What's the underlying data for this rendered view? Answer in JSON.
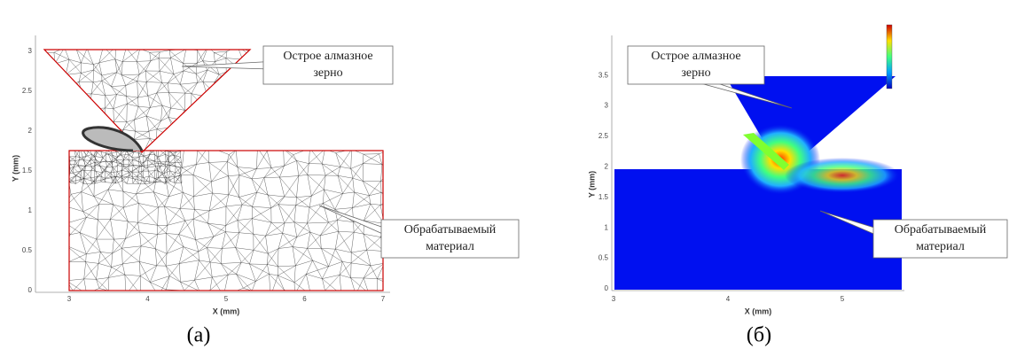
{
  "panels": [
    {
      "caption": "(а)",
      "x_label": "X (mm)",
      "y_label": "Y (mm)",
      "xticks": [
        "3",
        "4",
        "5",
        "6",
        "7"
      ],
      "yticks": [
        "0",
        "0.5",
        "1",
        "1.5",
        "2",
        "2.5",
        "3"
      ],
      "callouts": [
        {
          "lines": [
            "Острое алмазное",
            "зерно"
          ]
        },
        {
          "lines": [
            "Обрабатываемый",
            "материал"
          ]
        }
      ]
    },
    {
      "caption": "(б)",
      "x_label": "X (mm)",
      "y_label": "Y (mm)",
      "xticks": [
        "3",
        "4",
        "5"
      ],
      "yticks": [
        "0",
        "0.5",
        "1",
        "1.5",
        "2",
        "2.5",
        "3",
        "3.5"
      ],
      "callouts": [
        {
          "lines": [
            "Острое алмазное",
            "зерно"
          ]
        },
        {
          "lines": [
            "Обрабатываемый",
            "материал"
          ]
        }
      ]
    }
  ]
}
